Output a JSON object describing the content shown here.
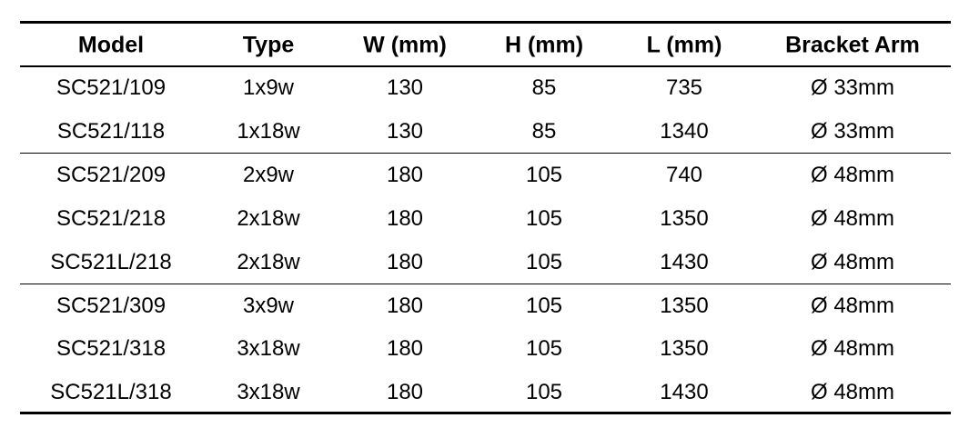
{
  "table": {
    "header": [
      "Model",
      "Type",
      "W (mm)",
      "H (mm)",
      "L (mm)",
      "Bracket Arm"
    ],
    "groups": [
      {
        "rows": [
          [
            "SC521/109",
            "1x9w",
            "130",
            "85",
            "735",
            "Ø 33mm"
          ],
          [
            "SC521/118",
            "1x18w",
            "130",
            "85",
            "1340",
            "Ø 33mm"
          ]
        ]
      },
      {
        "rows": [
          [
            "SC521/209",
            "2x9w",
            "180",
            "105",
            "740",
            "Ø 48mm"
          ],
          [
            "SC521/218",
            "2x18w",
            "180",
            "105",
            "1350",
            "Ø 48mm"
          ],
          [
            "SC521L/218",
            "2x18w",
            "180",
            "105",
            "1430",
            "Ø 48mm"
          ]
        ]
      },
      {
        "rows": [
          [
            "SC521/309",
            "3x9w",
            "180",
            "105",
            "1350",
            "Ø 48mm"
          ],
          [
            "SC521/318",
            "3x18w",
            "180",
            "105",
            "1350",
            "Ø 48mm"
          ],
          [
            "SC521L/318",
            "3x18w",
            "180",
            "105",
            "1430",
            "Ø 48mm"
          ]
        ]
      }
    ]
  }
}
